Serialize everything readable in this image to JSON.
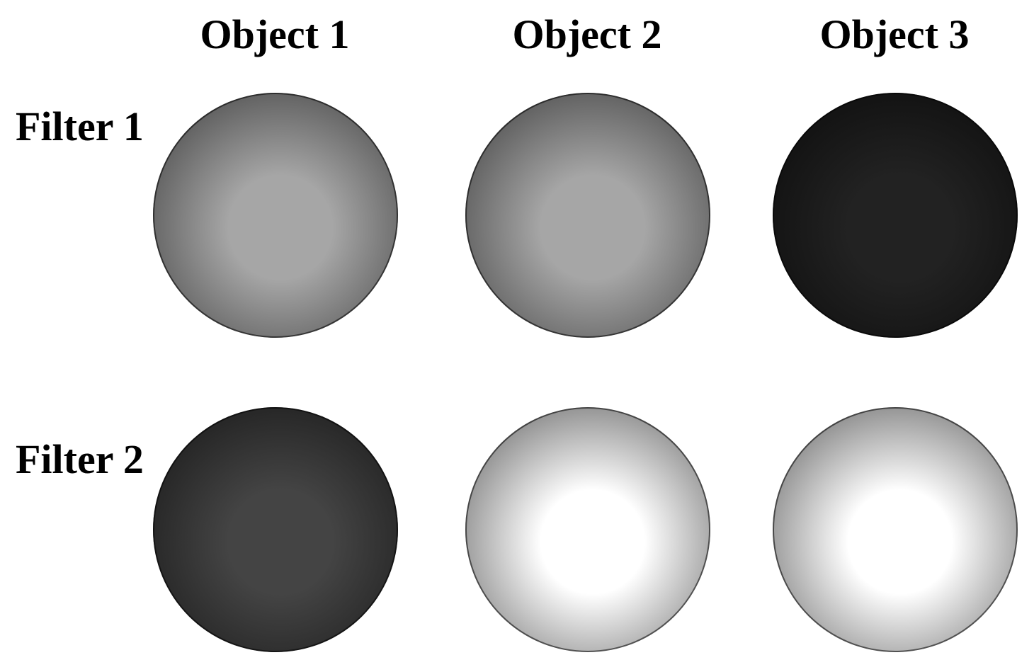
{
  "columns": [
    {
      "label": "Object 1"
    },
    {
      "label": "Object 2"
    },
    {
      "label": "Object 3"
    }
  ],
  "rows": [
    {
      "label": "Filter 1",
      "spheres": [
        {
          "center_color": "#a6a6a6",
          "edge_color": "#3a3a3a"
        },
        {
          "center_color": "#a6a6a6",
          "edge_color": "#3a3a3a"
        },
        {
          "center_color": "#222222",
          "edge_color": "#0a0a0a"
        }
      ]
    },
    {
      "label": "Filter 2",
      "spheres": [
        {
          "center_color": "#444444",
          "edge_color": "#151515"
        },
        {
          "center_color": "#ffffff",
          "edge_color": "#555555"
        },
        {
          "center_color": "#ffffff",
          "edge_color": "#555555"
        }
      ]
    }
  ]
}
